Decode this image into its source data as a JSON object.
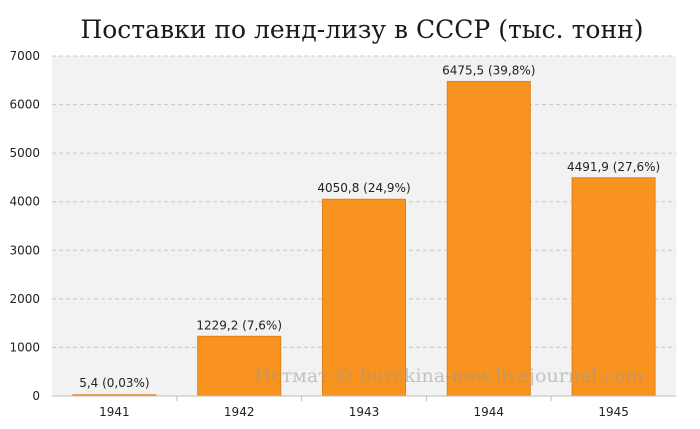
{
  "chart_data": {
    "type": "bar",
    "title": "Поставки по ленд-лизу в СССР (тыс. тонн)",
    "categories": [
      "1941",
      "1942",
      "1943",
      "1944",
      "1945"
    ],
    "values": [
      5.4,
      1229.2,
      4050.8,
      6475.5,
      4491.9
    ],
    "data_labels": [
      "5,4 (0,03%)",
      "1229,2 (7,6%)",
      "4050,8 (24,9%)",
      "6475,5 (39,8%)",
      "4491,9 (27,6%)"
    ],
    "ylim": [
      0,
      7000
    ],
    "yticks": [
      "0",
      "1000",
      "2000",
      "3000",
      "4000",
      "5000",
      "6000",
      "7000"
    ],
    "grid": true,
    "plot_background": "#f2f2f2",
    "bar_color": "#f7931e",
    "bar_edge_color": "#e0801a"
  },
  "watermark": "Истмат © burckina-new.livejournal.com"
}
